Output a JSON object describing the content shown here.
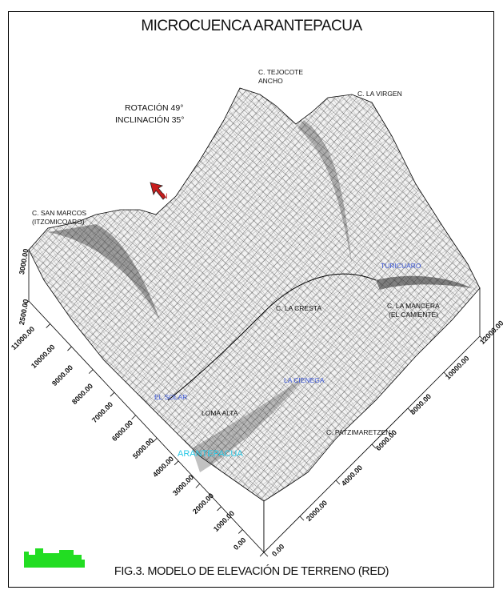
{
  "title": "MICROCUENCA ARANTEPACUA",
  "caption": "FIG.3. MODELO DE ELEVACIÓN DE TERRENO (RED)",
  "view": {
    "rotation": "ROTACIÓN 49°",
    "inclination": "INCLINACIÓN 35°"
  },
  "north_label": "N",
  "peaks": {
    "tejocote_1": "C. TEJOCOTE",
    "tejocote_2": "ANCHO",
    "virgen": "C. LA VIRGEN",
    "san_marcos_1": "C. SAN MARCOS",
    "san_marcos_2": "(ITZOMICOARO)",
    "la_mancera_1": "C. LA MANCERA",
    "la_mancera_2": "(EL CAMIENTE)",
    "cresta": "C. LA CRESTA",
    "patzimaretzen": "C. PATZIMARETZEN",
    "loma": "LOMA ALTA"
  },
  "places": {
    "arantepacua": "ARANTEPACUA",
    "blue_1": "TURICUARO",
    "blue_2": "LA CIENEGA",
    "blue_3": "EL SOLAR"
  },
  "axes": {
    "z_ticks": [
      "3000.00",
      "2500.00"
    ],
    "y_ticks": [
      "11000.00",
      "10000.00",
      "9000.00",
      "8000.00",
      "7000.00",
      "6000.00",
      "5000.00",
      "4000.00",
      "3000.00",
      "2000.00",
      "1000.00",
      "0.00"
    ],
    "x_ticks": [
      "0.00",
      "2000.00",
      "4000.00",
      "6000.00",
      "8000.00",
      "10000.00",
      "12000.00"
    ]
  },
  "colors": {
    "mesh": "#1a1a1a",
    "surface": "#f2f2f2",
    "blue_label": "#3b57d8",
    "cyan_label": "#29c8e6",
    "north_arrow": "#c81d1d",
    "logo": "#22dd22"
  }
}
